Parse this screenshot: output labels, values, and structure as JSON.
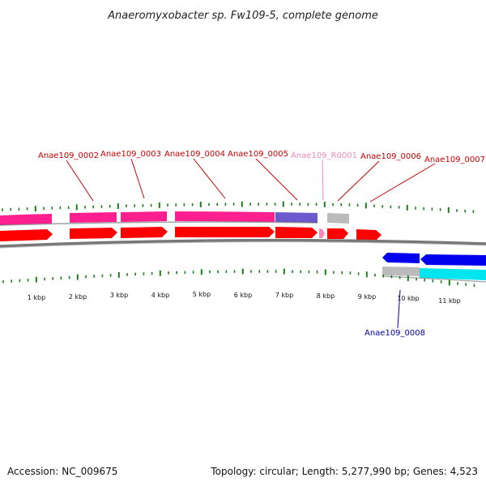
{
  "title": "Anaeromyxobacter sp. Fw109-5, complete genome",
  "footer": {
    "accession": "Accession: NC_009675",
    "summary": "Topology: circular; Length: 5,277,990 bp; Genes: 4,523"
  },
  "colors": {
    "gene_red": "#ff0000",
    "cds_pink": "#ff1f8f",
    "cds_purple": "#6a5acd",
    "rna_gray": "#bbbbbb",
    "gene_blue": "#0000ee",
    "cds_cyan": "#00e5ee",
    "tick_green": "#1a7f1a",
    "label_red": "#cc0000",
    "label_pink": "#ee88bb",
    "label_blue": "#0000aa"
  },
  "ruler": {
    "labels": [
      "1 kbp",
      "2 kbp",
      "3 kbp",
      "4 kbp",
      "5 kbp",
      "6 kbp",
      "7 kbp",
      "8 kbp",
      "9 kbp",
      "10 kbp",
      "11 kbp"
    ]
  },
  "genes": [
    {
      "id": "g_left",
      "label": "",
      "kind": "red"
    },
    {
      "id": "g0002",
      "label": "Anae109_0002",
      "kind": "red"
    },
    {
      "id": "g0003",
      "label": "Anae109_0003",
      "kind": "red"
    },
    {
      "id": "g0004",
      "label": "Anae109_0004",
      "kind": "red"
    },
    {
      "id": "g0005",
      "label": "Anae109_0005",
      "kind": "red"
    },
    {
      "id": "gR0001",
      "label": "Anae109_R0001",
      "kind": "rna"
    },
    {
      "id": "g0006",
      "label": "Anae109_0006",
      "kind": "red"
    },
    {
      "id": "g0007",
      "label": "Anae109_0007",
      "kind": "red"
    },
    {
      "id": "g0008",
      "label": "Anae109_0008",
      "kind": "blue"
    }
  ]
}
